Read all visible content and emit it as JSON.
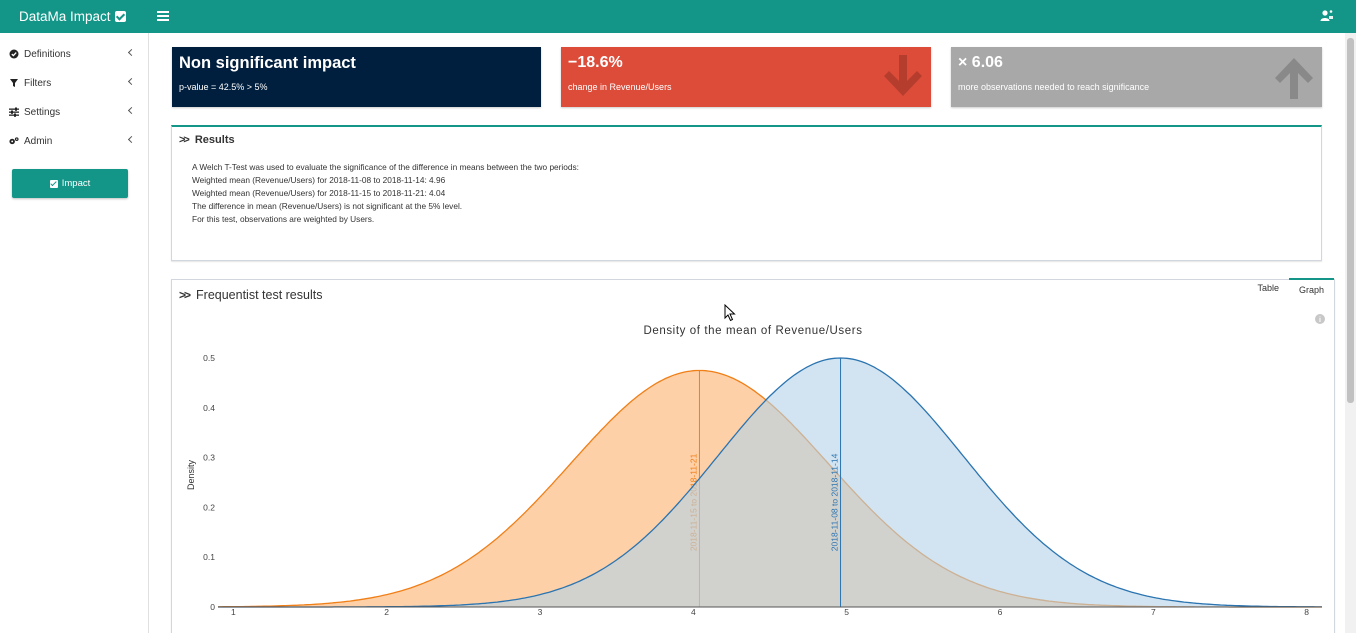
{
  "app": {
    "title": "DataMa Impact"
  },
  "sidebar": {
    "items": [
      {
        "label": "Definitions",
        "icon": "check-circle-icon"
      },
      {
        "label": "Filters",
        "icon": "filter-icon"
      },
      {
        "label": "Settings",
        "icon": "sliders-icon"
      },
      {
        "label": "Admin",
        "icon": "cogs-icon"
      }
    ],
    "impact_button": "Impact"
  },
  "value_boxes": [
    {
      "value": "Non significant impact",
      "subtitle": "p-value = 42.5% > 5%",
      "color": "#001f3f"
    },
    {
      "value": "−18.6%",
      "subtitle": "change in Revenue/Users",
      "color": "#dd4b39",
      "icon": "arrow-down-icon"
    },
    {
      "value": "× 6.06",
      "subtitle": "more observations needed to reach significance",
      "color": "#a8a8a8",
      "icon": "arrow-up-icon"
    }
  ],
  "results": {
    "title": "Results",
    "lines": [
      "A Welch T-Test was used to evaluate the significance of the difference in means between the two periods:",
      "Weighted mean (Revenue/Users) for 2018-11-08 to 2018-11-14: 4.96",
      "Weighted mean (Revenue/Users) for 2018-11-15 to 2018-11-21: 4.04",
      "The difference in mean (Revenue/Users) is not significant at the 5% level.",
      "For this test, observations are weighted by Users."
    ]
  },
  "frequentist": {
    "title": "Frequentist test results",
    "tabs": [
      "Table",
      "Graph"
    ],
    "active_tab": "Graph"
  },
  "chart_data": {
    "type": "area",
    "title": "Density of the mean of Revenue/Users",
    "xlabel": "",
    "ylabel": "Density",
    "xlim": [
      0.9,
      8.1
    ],
    "ylim": [
      0,
      0.5
    ],
    "x_ticks": [
      1,
      2,
      3,
      4,
      5,
      6,
      7,
      8
    ],
    "y_ticks": [
      0,
      0.1,
      0.2,
      0.3,
      0.4,
      0.5
    ],
    "grid": false,
    "series": [
      {
        "name": "2018-11-15 to 2018-11-21",
        "mean": 4.04,
        "sd": 0.84,
        "peak": 0.475,
        "line_color": "#f07f17",
        "fill_color": "#fdd0a8"
      },
      {
        "name": "2018-11-08 to 2018-11-14",
        "mean": 4.96,
        "sd": 0.8,
        "peak": 0.5,
        "line_color": "#2b74b0",
        "fill_color": "#b4d2e8"
      }
    ]
  }
}
